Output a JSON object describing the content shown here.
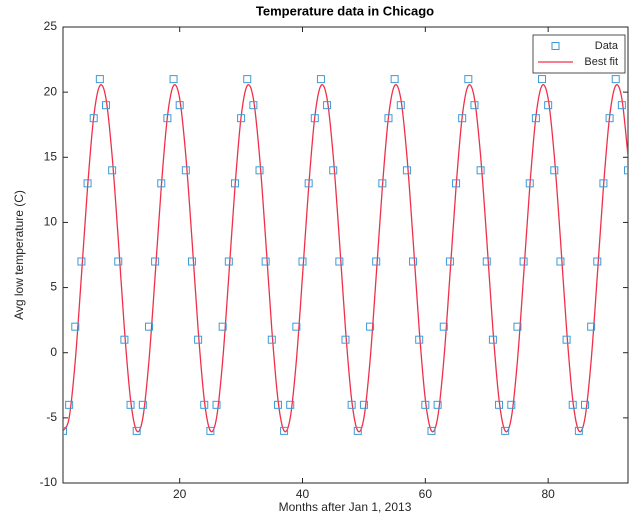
{
  "chart_data": {
    "type": "scatter",
    "title": "Temperature data in Chicago",
    "x_label": "Months after Jan 1, 2013",
    "y_label": "Avg low temperature (C)",
    "x": [
      1,
      2,
      3,
      4,
      5,
      6,
      7,
      8,
      9,
      10,
      11,
      12,
      13,
      14,
      15,
      16,
      17,
      18,
      19,
      20,
      21,
      22,
      23,
      24,
      25,
      26,
      27,
      28,
      29,
      30,
      31,
      32,
      33,
      34,
      35,
      36,
      37,
      38,
      39,
      40,
      41,
      42,
      43,
      44,
      45,
      46,
      47,
      48,
      49,
      50,
      51,
      52,
      53,
      54,
      55,
      56,
      57,
      58,
      59,
      60,
      61,
      62,
      63,
      64,
      65,
      66,
      67,
      68,
      69,
      70,
      71,
      72,
      73,
      74,
      75,
      76,
      77,
      78,
      79,
      80,
      81,
      82,
      83,
      84,
      85,
      86,
      87,
      88,
      89,
      90,
      91,
      92,
      93
    ],
    "series": [
      {
        "name": "Data",
        "color": "#3b9bd6",
        "marker": "square",
        "values": [
          -6,
          -4,
          2,
          7,
          13,
          18,
          21,
          19,
          14,
          7,
          1,
          -4,
          -6,
          -4,
          2,
          7,
          13,
          18,
          21,
          19,
          14,
          7,
          1,
          -4,
          -6,
          -4,
          2,
          7,
          13,
          18,
          21,
          19,
          14,
          7,
          1,
          -4,
          -6,
          -4,
          2,
          7,
          13,
          18,
          21,
          19,
          14,
          7,
          1,
          -4,
          -6,
          -4,
          2,
          7,
          13,
          18,
          21,
          19,
          14,
          7,
          1,
          -4,
          -6,
          -4,
          2,
          7,
          13,
          18,
          21,
          19,
          14,
          7,
          1,
          -4,
          -6,
          -4,
          2,
          7,
          13,
          18,
          21,
          19,
          14,
          7,
          1,
          -4,
          -6,
          -4,
          2,
          7,
          13,
          18,
          21,
          19,
          14
        ]
      },
      {
        "name": "Best fit",
        "color": "#f0304a",
        "marker": "line",
        "values": [
          -6,
          -5,
          -0.6,
          5.9,
          12.7,
          18.1,
          20.5,
          19.5,
          15.1,
          8.7,
          1.8,
          -3.6,
          -6,
          -5,
          -0.6,
          5.9,
          12.7,
          18.1,
          20.5,
          19.5,
          15.1,
          8.7,
          1.8,
          -3.6,
          -6,
          -5,
          -0.6,
          5.9,
          12.7,
          18.1,
          20.5,
          19.5,
          15.1,
          8.7,
          1.8,
          -3.6,
          -6,
          -5,
          -0.6,
          5.9,
          12.7,
          18.1,
          20.5,
          19.5,
          15.1,
          8.7,
          1.8,
          -3.6,
          -6,
          -5,
          -0.6,
          5.9,
          12.7,
          18.1,
          20.5,
          19.5,
          15.1,
          8.7,
          1.8,
          -3.6,
          -6,
          -5,
          -0.6,
          5.9,
          12.7,
          18.1,
          20.5,
          19.5,
          15.1,
          8.7,
          1.8,
          -3.6,
          -6,
          -5,
          -0.6,
          5.9,
          12.7,
          18.1,
          20.5,
          19.5,
          15.1,
          8.7,
          1.8,
          -3.6,
          -6,
          -5,
          -0.6,
          5.9,
          12.7,
          18.1,
          20.5,
          19.5,
          15.1
        ]
      }
    ],
    "xlim": [
      1,
      93
    ],
    "xticks": [
      20,
      40,
      60,
      80
    ],
    "ylim": [
      -10,
      25
    ],
    "yticks": [
      -10,
      -5,
      0,
      5,
      10,
      15,
      20,
      25
    ],
    "grid": false,
    "legend": "northeast"
  }
}
